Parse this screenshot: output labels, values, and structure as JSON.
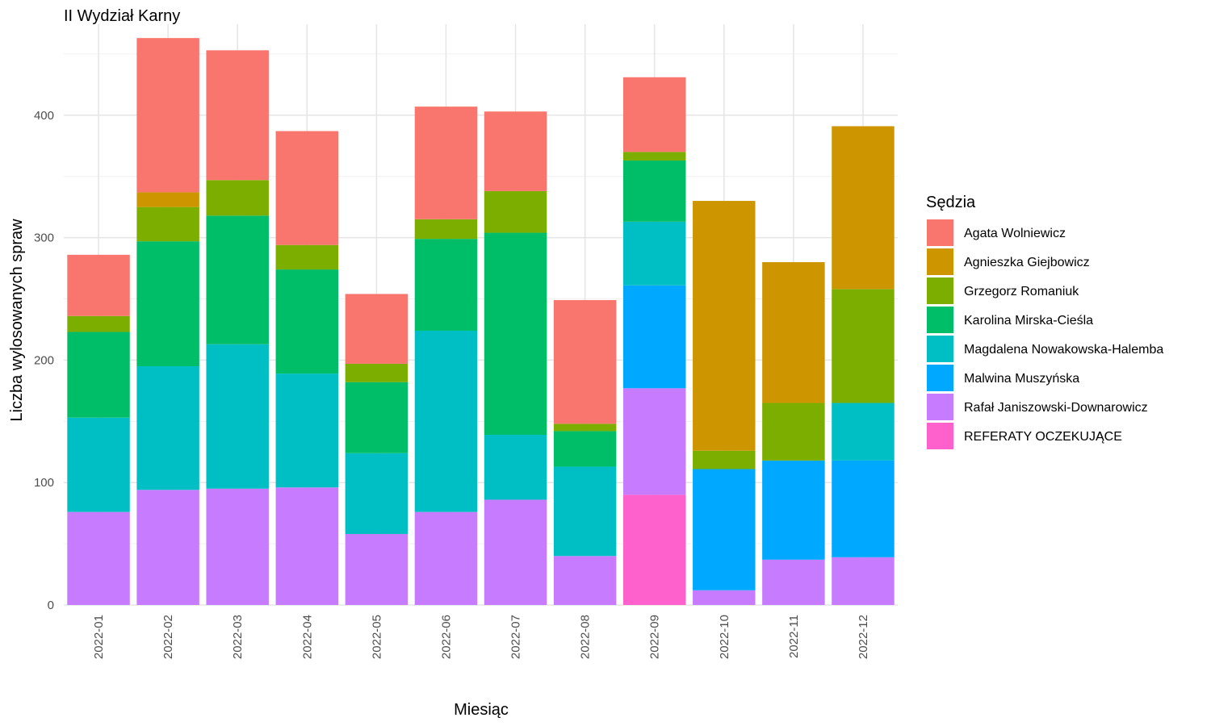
{
  "chart_data": {
    "type": "bar",
    "stacked": true,
    "title": "II Wydział Karny",
    "xlabel": "Miesiąc",
    "ylabel": "Liczba wylosowanych spraw",
    "ylim": [
      0,
      470
    ],
    "yticks": [
      0,
      100,
      200,
      300,
      400
    ],
    "grid": true,
    "legend_position": "right",
    "legend_title": "Sędzia",
    "categories": [
      "2022-01",
      "2022-02",
      "2022-03",
      "2022-04",
      "2022-05",
      "2022-06",
      "2022-07",
      "2022-08",
      "2022-09",
      "2022-10",
      "2022-11",
      "2022-12"
    ],
    "series": [
      {
        "name": "REFERATY OCZEKUJĄCE",
        "color": "#FF61CC",
        "values": [
          0,
          0,
          0,
          0,
          0,
          0,
          0,
          0,
          90,
          0,
          0,
          0
        ]
      },
      {
        "name": "Rafał Janiszowski-Downarowicz",
        "color": "#C77CFF",
        "values": [
          76,
          94,
          95,
          96,
          58,
          76,
          86,
          40,
          87,
          12,
          37,
          39
        ]
      },
      {
        "name": "Malwina Muszyńska",
        "color": "#00A9FF",
        "values": [
          0,
          0,
          0,
          0,
          0,
          0,
          0,
          0,
          84,
          99,
          81,
          79
        ]
      },
      {
        "name": "Magdalena Nowakowska-Halemba",
        "color": "#00BFC4",
        "values": [
          77,
          101,
          118,
          93,
          66,
          148,
          53,
          73,
          52,
          0,
          0,
          47
        ]
      },
      {
        "name": "Karolina Mirska-Cieśla",
        "color": "#00BE67",
        "values": [
          70,
          102,
          105,
          85,
          58,
          75,
          165,
          29,
          50,
          0,
          0,
          0
        ]
      },
      {
        "name": "Grzegorz Romaniuk",
        "color": "#7CAE00",
        "values": [
          13,
          28,
          29,
          20,
          15,
          16,
          34,
          6,
          7,
          15,
          47,
          93
        ]
      },
      {
        "name": "Agnieszka Giejbowicz",
        "color": "#CD9600",
        "values": [
          0,
          12,
          0,
          0,
          0,
          0,
          0,
          0,
          0,
          204,
          115,
          133
        ]
      },
      {
        "name": "Agata Wolniewicz",
        "color": "#F8766D",
        "values": [
          50,
          126,
          106,
          93,
          57,
          92,
          65,
          101,
          61,
          0,
          0,
          0
        ]
      }
    ],
    "legend_order": [
      "Agata Wolniewicz",
      "Agnieszka Giejbowicz",
      "Grzegorz Romaniuk",
      "Karolina Mirska-Cieśla",
      "Magdalena Nowakowska-Halemba",
      "Malwina Muszyńska",
      "Rafał Janiszowski-Downarowicz",
      "REFERATY OCZEKUJĄCE"
    ]
  }
}
